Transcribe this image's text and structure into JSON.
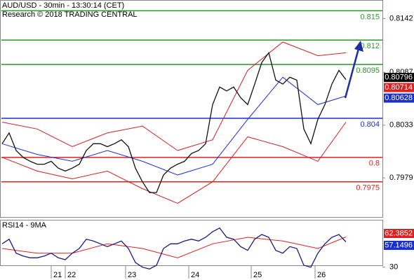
{
  "chart_data": [
    {
      "type": "line",
      "title": "AUD/USD - 30min - 13:30:14 (CET)",
      "subtitle": "Research © 2018 TRADING CENTRAL",
      "x": [
        0,
        1,
        2,
        3,
        4,
        5,
        6,
        7,
        8,
        9,
        10,
        11,
        12,
        13,
        14,
        15,
        16,
        17,
        18,
        19,
        20,
        21,
        22,
        23,
        24,
        25,
        26,
        27,
        28,
        29,
        30,
        31,
        32,
        33,
        34,
        35,
        36,
        37,
        38,
        39,
        40,
        41,
        42,
        43,
        44,
        45,
        46,
        47,
        48,
        49
      ],
      "xlim": [
        -0.3,
        54.2
      ],
      "ylim": [
        0.7939,
        0.8161
      ],
      "yticks": [
        0.8142,
        0.8087,
        0.8033,
        0.7979
      ],
      "series": [
        {
          "color": "#d02020",
          "x": [
            0,
            5,
            10,
            15,
            20,
            25,
            30,
            35,
            40,
            45,
            49
          ],
          "values": [
            0.8036,
            0.8029,
            0.8011,
            0.8025,
            0.8032,
            0.8007,
            0.8018,
            0.8089,
            0.8118,
            0.8104,
            0.8107
          ]
        },
        {
          "color": "#d02020",
          "x": [
            0,
            5,
            10,
            15,
            20,
            25,
            30,
            35,
            40,
            45,
            49
          ],
          "values": [
            0.8,
            0.7986,
            0.7978,
            0.7986,
            0.7968,
            0.7953,
            0.7975,
            0.8021,
            0.8011,
            0.7996,
            0.8036
          ]
        },
        {
          "color": "#1a2fd0",
          "x": [
            0,
            5,
            10,
            15,
            20,
            25,
            30,
            35,
            40,
            45,
            49
          ],
          "values": [
            0.8014,
            0.8003,
            0.7996,
            0.8007,
            0.7996,
            0.7982,
            0.7993,
            0.8039,
            0.8082,
            0.8054,
            0.80628
          ]
        },
        {
          "color": "#111111",
          "values": [
            0.8014,
            0.8025,
            0.8007,
            0.8,
            0.7996,
            0.7993,
            0.7993,
            0.7996,
            0.7989,
            0.7986,
            0.7989,
            0.7993,
            0.8007,
            0.8014,
            0.8014,
            0.8011,
            0.8014,
            0.8018,
            0.8011,
            0.7989,
            0.7975,
            0.7964,
            0.7964,
            0.7982,
            0.7989,
            0.7993,
            0.7996,
            0.8004,
            0.8007,
            0.8014,
            0.8054,
            0.8072,
            0.8068,
            0.8072,
            0.8061,
            0.8054,
            0.8075,
            0.8097,
            0.8107,
            0.8079,
            0.8075,
            0.8082,
            0.8079,
            0.8029,
            0.8014,
            0.8039,
            0.8054,
            0.8075,
            0.8089,
            0.80796
          ]
        }
      ],
      "levels": [
        {
          "value": 0.815,
          "color": "#2a962a"
        },
        {
          "value": 0.812,
          "color": "#2a962a"
        },
        {
          "value": 0.8095,
          "color": "#2a962a"
        },
        {
          "value": 0.804,
          "color": "#1a2fd0"
        },
        {
          "value": 0.8,
          "color": "#e02020"
        },
        {
          "value": 0.7975,
          "color": "#e02020"
        }
      ],
      "last_values": [
        {
          "value": 0.80796,
          "color": "#000000"
        },
        {
          "value": 0.80714,
          "color": "#e02020"
        },
        {
          "value": 0.80628,
          "color": "#1a2fd0"
        }
      ]
    },
    {
      "type": "line",
      "title": "RSI14 - 9MA",
      "x": [
        0,
        1,
        2,
        3,
        4,
        5,
        6,
        7,
        8,
        9,
        10,
        11,
        12,
        13,
        14,
        15,
        16,
        17,
        18,
        19,
        20,
        21,
        22,
        23,
        24,
        25,
        26,
        27,
        28,
        29,
        30,
        31,
        32,
        33,
        34,
        35,
        36,
        37,
        38,
        39,
        40,
        41,
        42,
        43,
        44,
        45,
        46,
        47,
        48,
        49
      ],
      "xlim": [
        -0.3,
        54.2
      ],
      "xticks": [
        {
          "value": 7,
          "label": "21"
        },
        {
          "value": 9,
          "label": "22"
        },
        {
          "value": 17.6,
          "label": "23"
        },
        {
          "value": 26.6,
          "label": "24"
        },
        {
          "value": 35.5,
          "label": "25"
        },
        {
          "value": 44.6,
          "label": "26"
        }
      ],
      "ylim": [
        20,
        80
      ],
      "yticks": [
        30
      ],
      "series": [
        {
          "color": "#e02020",
          "x": [
            0,
            5,
            10,
            15,
            20,
            25,
            30,
            35,
            40,
            45,
            49
          ],
          "values": [
            50,
            45,
            45,
            55,
            50,
            40,
            55,
            62,
            58,
            50,
            62.3852
          ]
        },
        {
          "color": "#1a1a80",
          "values": [
            55,
            60,
            45,
            42,
            40,
            40,
            42,
            45,
            40,
            38,
            45,
            50,
            60,
            58,
            55,
            52,
            55,
            58,
            50,
            35,
            30,
            28,
            32,
            50,
            55,
            55,
            58,
            60,
            58,
            62,
            68,
            72,
            62,
            60,
            52,
            48,
            60,
            65,
            62,
            48,
            45,
            52,
            50,
            32,
            30,
            45,
            55,
            62,
            65,
            57.1496
          ]
        }
      ],
      "last_values": [
        {
          "value": 62.3852,
          "color": "#e02020"
        },
        {
          "value": 57.1496,
          "color": "#1a2fd0"
        }
      ]
    }
  ]
}
